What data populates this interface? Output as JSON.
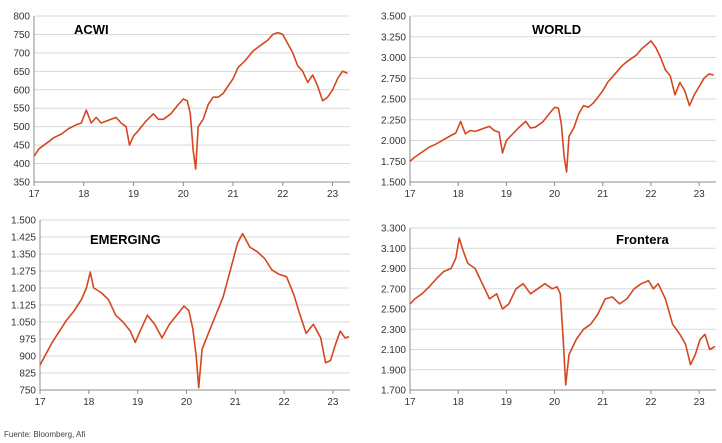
{
  "colors": {
    "line": "#d4471f",
    "grid": "#d9d9d9",
    "axis": "#8c8c8c"
  },
  "source": "Fuente: Bloomberg, Afi",
  "chart_data": [
    {
      "type": "line",
      "title": "ACWI",
      "x_tick_labels": [
        "17",
        "18",
        "19",
        "20",
        "21",
        "22",
        "23"
      ],
      "x_ticks": [
        2017,
        2018,
        2019,
        2020,
        2021,
        2022,
        2023
      ],
      "xlim": [
        2017,
        2023.35
      ],
      "y_tick_labels": [
        "350",
        "400",
        "450",
        "500",
        "550",
        "600",
        "650",
        "700",
        "750",
        "800"
      ],
      "y_ticks": [
        350,
        400,
        450,
        500,
        550,
        600,
        650,
        700,
        750,
        800
      ],
      "ylim": [
        350,
        800
      ],
      "grid": "horizontal",
      "series": [
        {
          "x": [
            2017.0,
            2017.1,
            2017.25,
            2017.4,
            2017.55,
            2017.7,
            2017.85,
            2017.95,
            2018.05,
            2018.15,
            2018.25,
            2018.35,
            2018.45,
            2018.55,
            2018.65,
            2018.75,
            2018.85,
            2018.92,
            2019.0,
            2019.1,
            2019.25,
            2019.4,
            2019.5,
            2019.6,
            2019.75,
            2019.9,
            2020.0,
            2020.08,
            2020.14,
            2020.2,
            2020.25,
            2020.3,
            2020.4,
            2020.5,
            2020.6,
            2020.7,
            2020.8,
            2020.9,
            2021.0,
            2021.1,
            2021.25,
            2021.4,
            2021.5,
            2021.6,
            2021.7,
            2021.8,
            2021.9,
            2022.0,
            2022.1,
            2022.2,
            2022.3,
            2022.4,
            2022.5,
            2022.6,
            2022.7,
            2022.8,
            2022.9,
            2023.0,
            2023.1,
            2023.2,
            2023.3
          ],
          "y": [
            420,
            440,
            455,
            470,
            480,
            495,
            505,
            510,
            545,
            510,
            525,
            510,
            515,
            520,
            525,
            510,
            500,
            450,
            475,
            490,
            515,
            535,
            520,
            520,
            535,
            560,
            575,
            570,
            535,
            435,
            385,
            500,
            520,
            560,
            580,
            580,
            590,
            610,
            630,
            660,
            680,
            705,
            715,
            725,
            735,
            750,
            755,
            750,
            725,
            700,
            665,
            650,
            620,
            640,
            610,
            570,
            580,
            600,
            630,
            650,
            645
          ]
        }
      ]
    },
    {
      "type": "line",
      "title": "WORLD",
      "x_tick_labels": [
        "17",
        "18",
        "19",
        "20",
        "21",
        "22",
        "23"
      ],
      "x_ticks": [
        2017,
        2018,
        2019,
        2020,
        2021,
        2022,
        2023
      ],
      "xlim": [
        2017,
        2023.35
      ],
      "y_tick_labels": [
        "1.500",
        "1.750",
        "2.000",
        "2.250",
        "2.500",
        "2.750",
        "3.000",
        "3.250",
        "3.500"
      ],
      "y_ticks": [
        1500,
        1750,
        2000,
        2250,
        2500,
        2750,
        3000,
        3250,
        3500
      ],
      "ylim": [
        1500,
        3500
      ],
      "grid": "horizontal",
      "series": [
        {
          "x": [
            2017.0,
            2017.1,
            2017.25,
            2017.4,
            2017.55,
            2017.7,
            2017.85,
            2017.95,
            2018.05,
            2018.15,
            2018.25,
            2018.35,
            2018.45,
            2018.55,
            2018.65,
            2018.75,
            2018.85,
            2018.92,
            2019.0,
            2019.1,
            2019.25,
            2019.4,
            2019.5,
            2019.6,
            2019.75,
            2019.9,
            2020.0,
            2020.08,
            2020.14,
            2020.2,
            2020.25,
            2020.3,
            2020.4,
            2020.5,
            2020.6,
            2020.7,
            2020.8,
            2020.9,
            2021.0,
            2021.1,
            2021.25,
            2021.4,
            2021.5,
            2021.6,
            2021.7,
            2021.8,
            2021.9,
            2022.0,
            2022.1,
            2022.2,
            2022.3,
            2022.4,
            2022.5,
            2022.6,
            2022.7,
            2022.8,
            2022.9,
            2023.0,
            2023.1,
            2023.2,
            2023.3
          ],
          "y": [
            1750,
            1800,
            1860,
            1920,
            1960,
            2010,
            2060,
            2090,
            2230,
            2080,
            2120,
            2110,
            2130,
            2150,
            2170,
            2120,
            2100,
            1850,
            2000,
            2060,
            2150,
            2230,
            2150,
            2160,
            2220,
            2330,
            2400,
            2390,
            2200,
            1800,
            1620,
            2050,
            2150,
            2320,
            2420,
            2400,
            2450,
            2520,
            2600,
            2700,
            2800,
            2900,
            2950,
            2990,
            3030,
            3100,
            3150,
            3200,
            3120,
            3000,
            2850,
            2780,
            2550,
            2700,
            2600,
            2420,
            2550,
            2650,
            2750,
            2800,
            2790
          ]
        }
      ]
    },
    {
      "type": "line",
      "title": "EMERGING",
      "x_tick_labels": [
        "17",
        "18",
        "19",
        "20",
        "21",
        "22",
        "23"
      ],
      "x_ticks": [
        2017,
        2018,
        2019,
        2020,
        2021,
        2022,
        2023
      ],
      "xlim": [
        2017,
        2023.35
      ],
      "y_tick_labels": [
        "750",
        "825",
        "900",
        "975",
        "1.050",
        "1.125",
        "1.200",
        "1.275",
        "1.350",
        "1.425",
        "1.500"
      ],
      "y_ticks": [
        750,
        825,
        900,
        975,
        1050,
        1125,
        1200,
        1275,
        1350,
        1425,
        1500
      ],
      "ylim": [
        750,
        1500
      ],
      "grid": "horizontal",
      "series": [
        {
          "x": [
            2017.0,
            2017.1,
            2017.25,
            2017.4,
            2017.55,
            2017.7,
            2017.85,
            2017.95,
            2018.03,
            2018.1,
            2018.25,
            2018.4,
            2018.55,
            2018.7,
            2018.85,
            2018.95,
            2019.05,
            2019.2,
            2019.35,
            2019.5,
            2019.65,
            2019.8,
            2019.95,
            2020.05,
            2020.13,
            2020.2,
            2020.25,
            2020.32,
            2020.45,
            2020.6,
            2020.75,
            2020.9,
            2021.05,
            2021.15,
            2021.3,
            2021.45,
            2021.6,
            2021.75,
            2021.9,
            2022.05,
            2022.2,
            2022.3,
            2022.45,
            2022.6,
            2022.75,
            2022.85,
            2022.95,
            2023.05,
            2023.15,
            2023.25,
            2023.33
          ],
          "y": [
            860,
            900,
            960,
            1010,
            1060,
            1100,
            1150,
            1200,
            1270,
            1200,
            1180,
            1150,
            1080,
            1050,
            1010,
            960,
            1010,
            1080,
            1040,
            980,
            1040,
            1080,
            1120,
            1100,
            1020,
            900,
            760,
            930,
            1000,
            1080,
            1160,
            1280,
            1400,
            1440,
            1380,
            1360,
            1330,
            1280,
            1260,
            1250,
            1170,
            1100,
            1000,
            1040,
            980,
            870,
            880,
            950,
            1010,
            980,
            985
          ]
        }
      ]
    },
    {
      "type": "line",
      "title": "Frontera",
      "x_tick_labels": [
        "17",
        "18",
        "19",
        "20",
        "21",
        "22",
        "23"
      ],
      "x_ticks": [
        2017,
        2018,
        2019,
        2020,
        2021,
        2022,
        2023
      ],
      "xlim": [
        2017,
        2023.35
      ],
      "y_tick_labels": [
        "1.700",
        "1.900",
        "2.100",
        "2.300",
        "2.500",
        "2.700",
        "2.900",
        "3.100",
        "3.300"
      ],
      "y_ticks": [
        1700,
        1900,
        2100,
        2300,
        2500,
        2700,
        2900,
        3100,
        3300
      ],
      "ylim": [
        1700,
        3300
      ],
      "grid": "horizontal",
      "series": [
        {
          "x": [
            2017.0,
            2017.1,
            2017.25,
            2017.4,
            2017.55,
            2017.7,
            2017.85,
            2017.95,
            2018.02,
            2018.1,
            2018.2,
            2018.35,
            2018.5,
            2018.65,
            2018.8,
            2018.92,
            2019.05,
            2019.2,
            2019.35,
            2019.5,
            2019.65,
            2019.8,
            2019.95,
            2020.05,
            2020.12,
            2020.18,
            2020.23,
            2020.3,
            2020.45,
            2020.6,
            2020.75,
            2020.9,
            2021.05,
            2021.2,
            2021.35,
            2021.5,
            2021.65,
            2021.8,
            2021.95,
            2022.05,
            2022.15,
            2022.3,
            2022.45,
            2022.6,
            2022.72,
            2022.82,
            2022.92,
            2023.02,
            2023.12,
            2023.22,
            2023.33
          ],
          "y": [
            2550,
            2600,
            2650,
            2720,
            2800,
            2870,
            2900,
            3000,
            3200,
            3080,
            2950,
            2900,
            2750,
            2600,
            2650,
            2500,
            2550,
            2700,
            2750,
            2650,
            2700,
            2750,
            2700,
            2720,
            2650,
            2200,
            1750,
            2050,
            2200,
            2300,
            2350,
            2450,
            2600,
            2620,
            2550,
            2600,
            2700,
            2750,
            2780,
            2700,
            2750,
            2600,
            2350,
            2250,
            2150,
            1950,
            2050,
            2200,
            2250,
            2100,
            2130
          ]
        }
      ]
    }
  ]
}
